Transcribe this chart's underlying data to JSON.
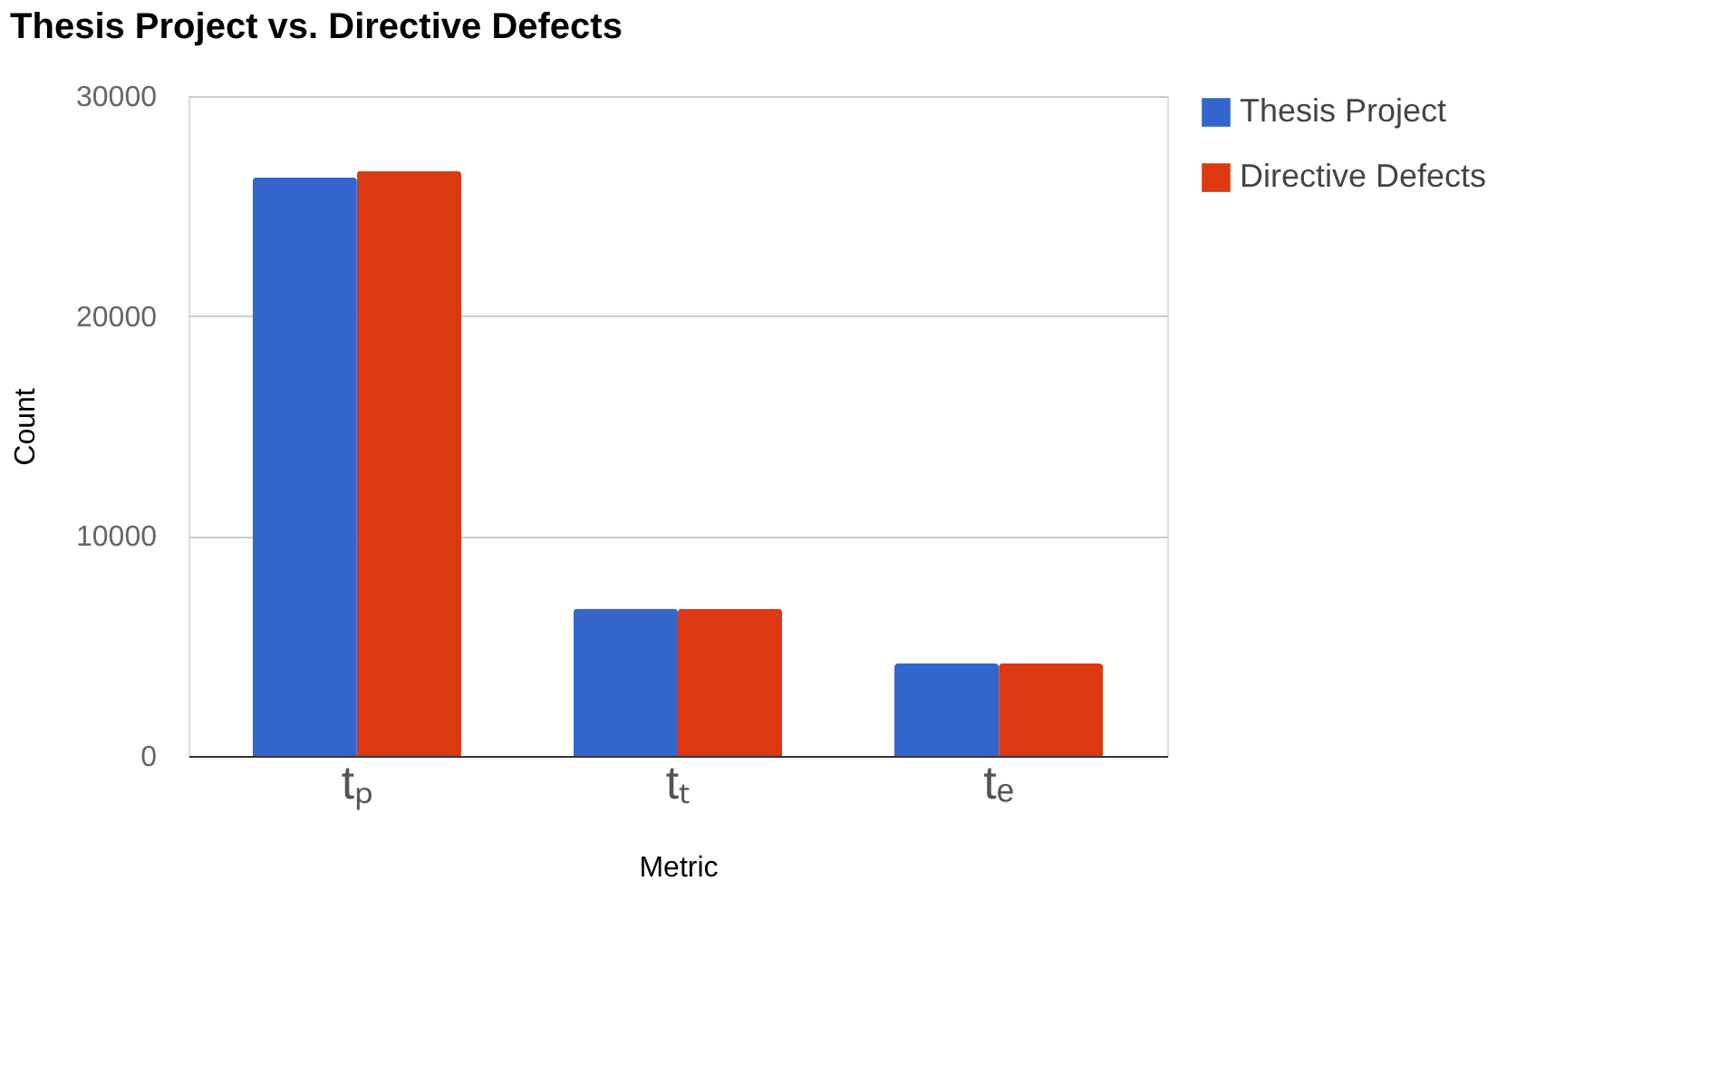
{
  "chart_data": {
    "type": "bar",
    "title": "Thesis Project vs. Directive Defects",
    "xlabel": "Metric",
    "ylabel": "Count",
    "categories": [
      "tₚ",
      "tₜ",
      "tₑ"
    ],
    "series": [
      {
        "name": "Thesis Project",
        "color": "#3366cc",
        "values": [
          26300,
          6700,
          4200
        ]
      },
      {
        "name": "Directive Defects",
        "color": "#dc3912",
        "values": [
          26600,
          6700,
          4200
        ]
      }
    ],
    "ylim": [
      0,
      30000
    ],
    "yticks": [
      0,
      10000,
      20000,
      30000
    ],
    "grid": "y",
    "legend": "top right"
  }
}
